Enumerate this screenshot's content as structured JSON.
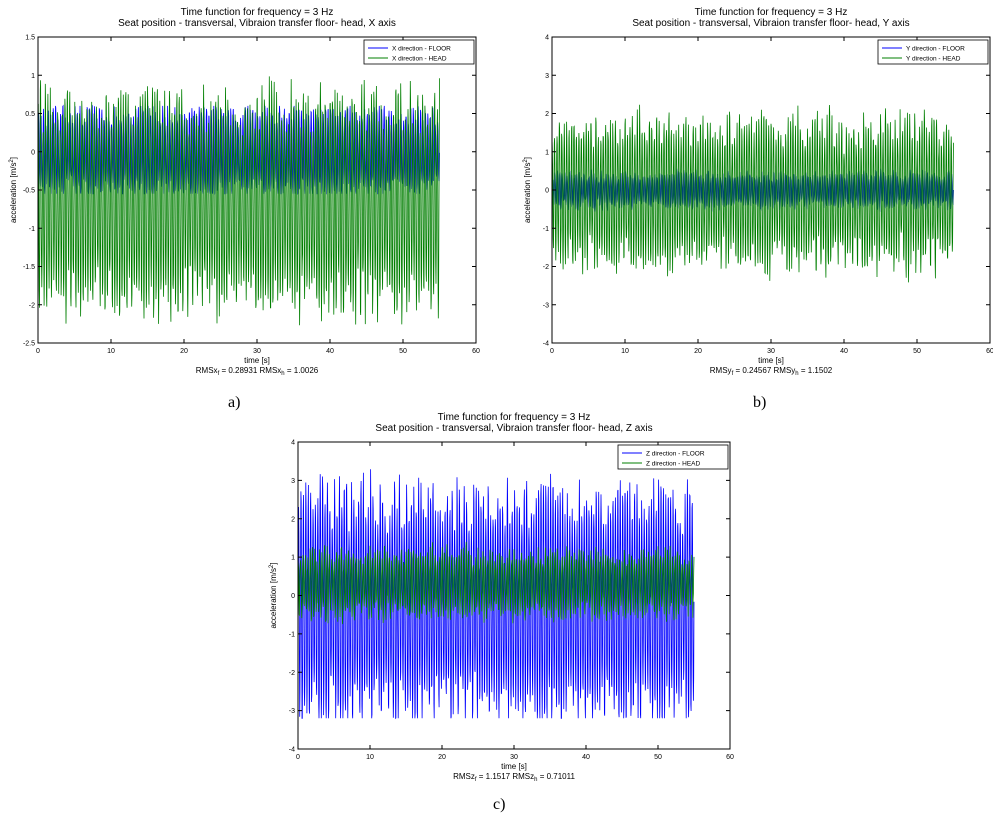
{
  "colors": {
    "floor": "#0000ff",
    "head": "#007f00",
    "axis": "#000000"
  },
  "panels": [
    {
      "id": "a",
      "caption": "a)",
      "chart_data": {
        "type": "line",
        "title": "Time function for frequency = 3 Hz",
        "subtitle": "Seat position - transversal,  Vibraion transfer floor- head, X axis",
        "xlabel": "time [s]",
        "ylabel_base": "acceleration [m/s",
        "ylabel_sup": "2",
        "ylabel_end": "]",
        "xlim": [
          0,
          60
        ],
        "ylim": [
          -2.5,
          1.5
        ],
        "xticks": [
          "0",
          "10",
          "20",
          "30",
          "40",
          "50",
          "60"
        ],
        "yticks": [
          "-2.5",
          "-2",
          "-1.5",
          "-1",
          "-0.5",
          "0",
          "0.5",
          "1",
          "1.5"
        ],
        "legend_position": "top-right",
        "duration": 55,
        "rms_label": "RMSx",
        "rms_floor_sub": "f",
        "rms_floor_value": "= 0.28931",
        "rms_head_label": "RMSx",
        "rms_head_sub": "h",
        "rms_head_value": "= 1.0026",
        "series": [
          {
            "name": "X direction - FLOOR",
            "color": "#0000ff",
            "mean": 0.0,
            "amplitude": 0.5,
            "noise": 0.06,
            "min": -0.55,
            "max": 0.6
          },
          {
            "name": "X direction - HEAD",
            "color": "#007f00",
            "mean": -0.65,
            "amplitude": 1.25,
            "noise": 0.15,
            "min": -2.35,
            "max": 1.35
          }
        ]
      }
    },
    {
      "id": "b",
      "caption": "b)",
      "chart_data": {
        "type": "line",
        "title": "Time function for frequency = 3 Hz",
        "subtitle": "Seat position - transversal,  Vibraion transfer floor- head, Y axis",
        "xlabel": "time [s]",
        "ylabel_base": "acceleration [m/s",
        "ylabel_sup": "2",
        "ylabel_end": "]",
        "xlim": [
          0,
          60
        ],
        "ylim": [
          -4,
          4
        ],
        "xticks": [
          "0",
          "10",
          "20",
          "30",
          "40",
          "50",
          "60"
        ],
        "yticks": [
          "-4",
          "-3",
          "-2",
          "-1",
          "0",
          "1",
          "2",
          "3",
          "4"
        ],
        "legend_position": "top-right",
        "duration": 55,
        "rms_label": "RMSy",
        "rms_floor_sub": "f",
        "rms_floor_value": "= 0.24567",
        "rms_head_label": "RMSy",
        "rms_head_sub": "h",
        "rms_head_value": "= 1.1502",
        "series": [
          {
            "name": "Y direction - FLOOR",
            "color": "#0000ff",
            "mean": 0.0,
            "amplitude": 0.4,
            "noise": 0.08,
            "min": -0.6,
            "max": 0.6
          },
          {
            "name": "Y direction - HEAD",
            "color": "#007f00",
            "mean": -0.05,
            "amplitude": 1.7,
            "noise": 0.3,
            "min": -3.2,
            "max": 3.3
          }
        ]
      }
    },
    {
      "id": "c",
      "caption": "c)",
      "chart_data": {
        "type": "line",
        "title": "Time function for frequency = 3 Hz",
        "subtitle": "Seat position - transversal,  Vibraion transfer floor- head, Z axis",
        "xlabel": "time [s]",
        "ylabel_base": "acceleration [m/s",
        "ylabel_sup": "2",
        "ylabel_end": "]",
        "xlim": [
          0,
          60
        ],
        "ylim": [
          -4,
          4
        ],
        "xticks": [
          "0",
          "10",
          "20",
          "30",
          "40",
          "50",
          "60"
        ],
        "yticks": [
          "-4",
          "-3",
          "-2",
          "-1",
          "0",
          "1",
          "2",
          "3",
          "4"
        ],
        "legend_position": "top-right",
        "duration": 55,
        "rms_label": "RMSz",
        "rms_floor_sub": "f",
        "rms_floor_value": "= 1.1517",
        "rms_head_label": "RMSz",
        "rms_head_sub": "h",
        "rms_head_value": "= 0.71011",
        "series": [
          {
            "name": "Z direction - FLOOR",
            "color": "#0000ff",
            "mean": -0.2,
            "amplitude": 2.7,
            "noise": 0.2,
            "min": -3.2,
            "max": 3.3
          },
          {
            "name": "Z direction - HEAD",
            "color": "#007f00",
            "mean": 0.3,
            "amplitude": 0.75,
            "noise": 0.2,
            "min": -1.6,
            "max": 1.7
          }
        ]
      }
    }
  ]
}
